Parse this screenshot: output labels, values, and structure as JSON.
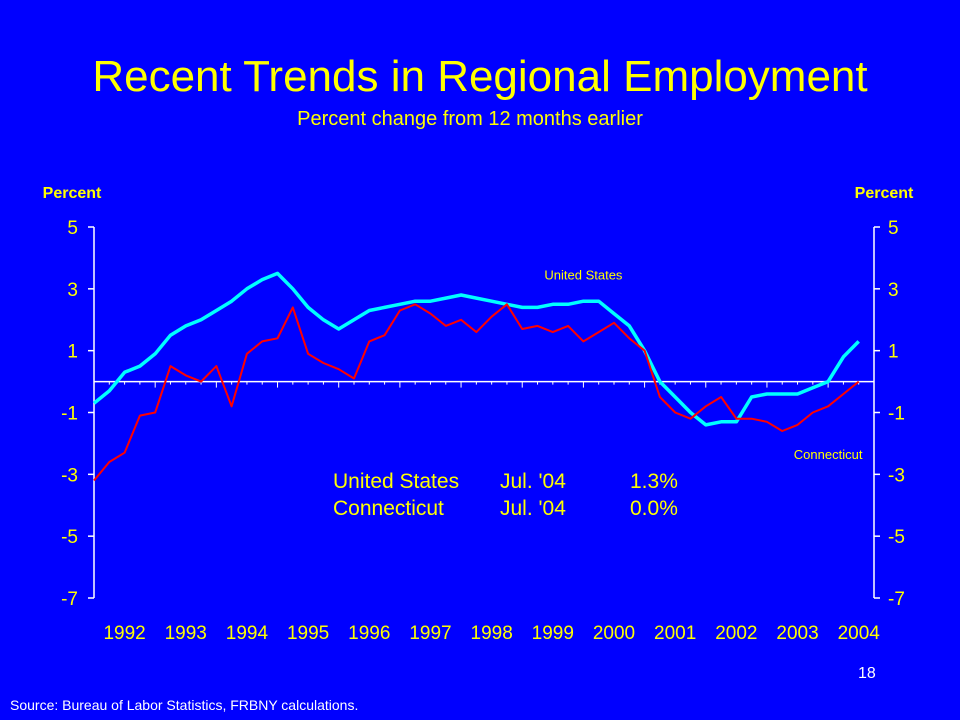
{
  "slide": {
    "title": "Recent Trends in Regional Employment",
    "subtitle": "Percent change from 12 months earlier",
    "source": "Source: Bureau of Labor Statistics, FRBNY calculations.",
    "page_number": "18"
  },
  "colors": {
    "background": "#0000FF",
    "title": "#FFFF00",
    "us_line": "#00FFFF",
    "ct_line": "#FF0000",
    "axis": "#FFFFFF"
  },
  "chart_data": {
    "type": "line",
    "title": "Recent Trends in Regional Employment",
    "subtitle": "Percent change from 12 months earlier",
    "ylabel_left": "Percent",
    "ylabel_right": "Percent",
    "ylim": [
      -7,
      5
    ],
    "yticks": [
      "5",
      "3",
      "1",
      "-1",
      "-3",
      "-5",
      "-7"
    ],
    "ytick_values": [
      5,
      3,
      1,
      -1,
      -3,
      -5,
      -7
    ],
    "xlim": [
      1992,
      2004.75
    ],
    "xticks": [
      "1992",
      "1993",
      "1994",
      "1995",
      "1996",
      "1997",
      "1998",
      "1999",
      "2000",
      "2001",
      "2002",
      "2003",
      "2004"
    ],
    "xtick_values": [
      1992,
      1993,
      1994,
      1995,
      1996,
      1997,
      1998,
      1999,
      2000,
      2001,
      2002,
      2003,
      2004
    ],
    "series": [
      {
        "name": "United States",
        "color": "#00FFFF",
        "x": [
          1992.0,
          1992.25,
          1992.5,
          1992.75,
          1993.0,
          1993.25,
          1993.5,
          1993.75,
          1994.0,
          1994.25,
          1994.5,
          1994.75,
          1995.0,
          1995.25,
          1995.5,
          1995.75,
          1996.0,
          1996.25,
          1996.5,
          1996.75,
          1997.0,
          1997.25,
          1997.5,
          1997.75,
          1998.0,
          1998.25,
          1998.5,
          1998.75,
          1999.0,
          1999.25,
          1999.5,
          1999.75,
          2000.0,
          2000.25,
          2000.5,
          2000.75,
          2001.0,
          2001.25,
          2001.5,
          2001.75,
          2002.0,
          2002.25,
          2002.5,
          2002.75,
          2003.0,
          2003.25,
          2003.5,
          2003.75,
          2004.0,
          2004.25,
          2004.5
        ],
        "y": [
          -0.7,
          -0.3,
          0.3,
          0.5,
          0.9,
          1.5,
          1.8,
          2.0,
          2.3,
          2.6,
          3.0,
          3.3,
          3.5,
          3.0,
          2.4,
          2.0,
          1.7,
          2.0,
          2.3,
          2.4,
          2.5,
          2.6,
          2.6,
          2.7,
          2.8,
          2.7,
          2.6,
          2.5,
          2.4,
          2.4,
          2.5,
          2.5,
          2.6,
          2.6,
          2.2,
          1.8,
          1.0,
          0.0,
          -0.5,
          -1.0,
          -1.4,
          -1.3,
          -1.3,
          -0.5,
          -0.4,
          -0.4,
          -0.4,
          -0.2,
          0.0,
          0.8,
          1.3
        ]
      },
      {
        "name": "Connecticut",
        "color": "#FF0000",
        "x": [
          1992.0,
          1992.25,
          1992.5,
          1992.75,
          1993.0,
          1993.25,
          1993.5,
          1993.75,
          1994.0,
          1994.25,
          1994.5,
          1994.75,
          1995.0,
          1995.25,
          1995.5,
          1995.75,
          1996.0,
          1996.25,
          1996.5,
          1996.75,
          1997.0,
          1997.25,
          1997.5,
          1997.75,
          1998.0,
          1998.25,
          1998.5,
          1998.75,
          1999.0,
          1999.25,
          1999.5,
          1999.75,
          2000.0,
          2000.25,
          2000.5,
          2000.75,
          2001.0,
          2001.25,
          2001.5,
          2001.75,
          2002.0,
          2002.25,
          2002.5,
          2002.75,
          2003.0,
          2003.25,
          2003.5,
          2003.75,
          2004.0,
          2004.25,
          2004.5
        ],
        "y": [
          -3.2,
          -2.6,
          -2.3,
          -1.1,
          -1.0,
          0.5,
          0.2,
          0.0,
          0.5,
          -0.8,
          0.9,
          1.3,
          1.4,
          2.4,
          0.9,
          0.6,
          0.4,
          0.1,
          1.3,
          1.5,
          2.3,
          2.5,
          2.2,
          1.8,
          2.0,
          1.6,
          2.1,
          2.5,
          1.7,
          1.8,
          1.6,
          1.8,
          1.3,
          1.6,
          1.9,
          1.4,
          1.0,
          -0.5,
          -1.0,
          -1.2,
          -0.8,
          -0.5,
          -1.2,
          -1.2,
          -1.3,
          -1.6,
          -1.4,
          -1.0,
          -0.8,
          -0.4,
          0.0
        ]
      }
    ],
    "series_labels": [
      {
        "text": "United States",
        "x": 2000.0,
        "y": 3.3
      },
      {
        "text": "Connecticut",
        "x": 2004.0,
        "y": -2.5
      }
    ],
    "legend": {
      "placement": "center",
      "rows": [
        {
          "name": "United States",
          "date": "Jul. '04",
          "value": "1.3%"
        },
        {
          "name": "Connecticut",
          "date": "Jul. '04",
          "value": "0.0%"
        }
      ]
    },
    "grid": false
  }
}
